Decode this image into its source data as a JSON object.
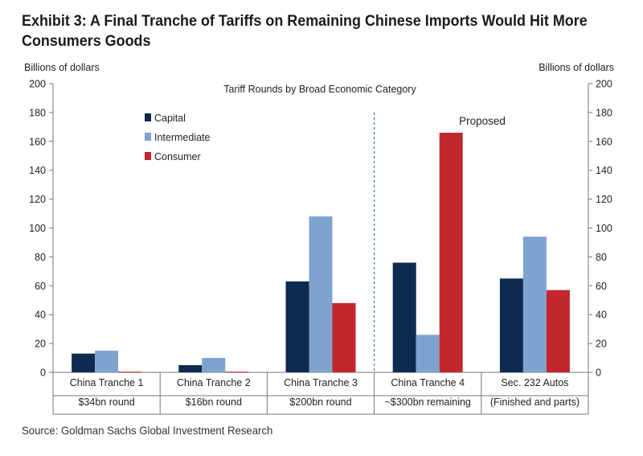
{
  "header": {
    "title_line1": "Exhibit 3: A Final Tranche of Tariffs on Remaining Chinese Imports Would Hit More",
    "title_line2": "Consumers Goods",
    "left_axis_unit": "Billions of dollars",
    "right_axis_unit": "Billions of dollars"
  },
  "footer": {
    "source": "Source: Goldman Sachs Global Investment Research"
  },
  "chart_data": {
    "type": "bar",
    "title": "Tariff Rounds by Broad Economic Category",
    "ylabel": "Billions of dollars",
    "ylabel_right": "Billions of dollars",
    "ylim": [
      0,
      200
    ],
    "yticks": [
      0,
      20,
      40,
      60,
      80,
      100,
      120,
      140,
      160,
      180,
      200
    ],
    "categories": [
      "China Tranche 1",
      "China Tranche 2",
      "China Tranche 3",
      "China Tranche 4",
      "Sec. 232 Autos"
    ],
    "sublabels": [
      "$34bn round",
      "$16bn round",
      "$200bn round",
      "~$300bn remaining",
      "(Finished and parts)"
    ],
    "series": [
      {
        "name": "Capital",
        "color": "#0e2b4f",
        "values": [
          13,
          5,
          63,
          76,
          65
        ]
      },
      {
        "name": "Intermediate",
        "color": "#7ea3cf",
        "values": [
          15,
          10,
          108,
          26,
          94
        ]
      },
      {
        "name": "Consumer",
        "color": "#c1272d",
        "values": [
          0.5,
          0.5,
          48,
          166,
          57
        ]
      }
    ],
    "annotation": "Proposed",
    "legend_position": "top-left",
    "grid": false
  }
}
